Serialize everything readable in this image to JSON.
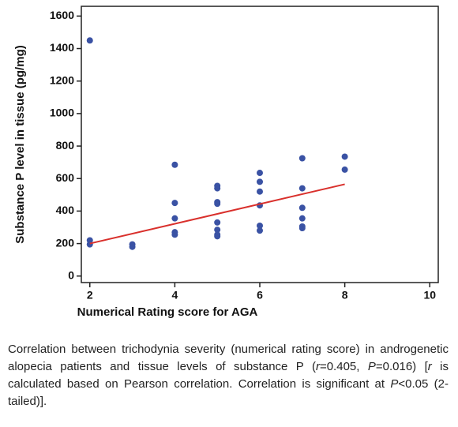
{
  "chart_data": {
    "type": "scatter",
    "xlabel": "Numerical Rating score for AGA",
    "ylabel": "Substance P level in tissue (pg/mg)",
    "x": [
      2,
      2,
      2,
      3,
      3,
      4,
      4,
      4,
      4,
      4,
      5,
      5,
      5,
      5,
      5,
      5,
      5,
      5,
      6,
      6,
      6,
      6,
      6,
      6,
      7,
      7,
      7,
      7,
      7,
      7,
      8,
      8
    ],
    "values": [
      1450,
      220,
      195,
      195,
      180,
      685,
      450,
      355,
      270,
      255,
      555,
      540,
      455,
      445,
      330,
      285,
      255,
      245,
      635,
      580,
      520,
      435,
      310,
      280,
      725,
      540,
      420,
      355,
      305,
      295,
      735,
      655
    ],
    "color": "#3a52a4",
    "fit": {
      "x": [
        2,
        8
      ],
      "y": [
        200,
        565
      ],
      "color": "#d9302c"
    },
    "xlim": [
      1.8,
      10.2
    ],
    "xticks": [
      2,
      4,
      6,
      8,
      10
    ],
    "ylim": [
      -40,
      1660
    ],
    "yticks": [
      0,
      200,
      400,
      600,
      800,
      1000,
      1200,
      1400,
      1600
    ]
  },
  "caption": [
    "Correlation between trichodynia severity (numerical rating score) in androgenetic alopecia patients and tissue levels of substance P (",
    "r",
    "=0.405, ",
    "P",
    "=0.016) [",
    "r",
    " is calculated based on Pearson correlation. Correlation is significant at ",
    "P",
    "<0.05 (2-tailed)]."
  ]
}
